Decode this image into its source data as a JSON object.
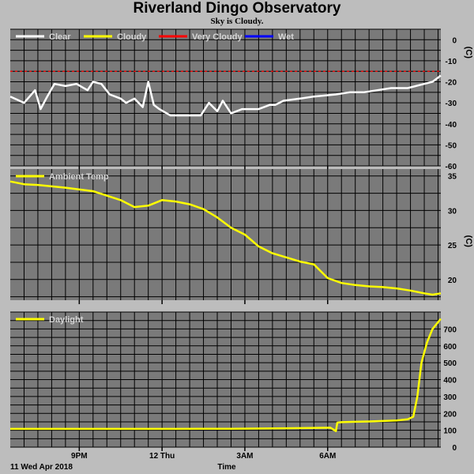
{
  "header": {
    "title": "Riverland Dingo Observatory",
    "subtitle": "Sky is Cloudy."
  },
  "colors": {
    "background": "#bdbdbd",
    "plot_background": "#7a7a7a",
    "grid": "#000000",
    "clear": "#ffffff",
    "cloudy": "#ffff00",
    "very_cloudy": "#ff0000",
    "wet": "#0000ff",
    "threshold_line": "#ff0000"
  },
  "x_axis": {
    "start_label": "11 Wed Apr 2018",
    "label": "Time",
    "ticks": [
      "9PM",
      "12 Thu",
      "3AM",
      "6AM"
    ]
  },
  "chart_data": [
    {
      "type": "line",
      "name": "sky_temperature",
      "ylabel": "(C)",
      "ylim": [
        -60,
        5
      ],
      "yticks": [
        0,
        -10,
        -20,
        -30,
        -40,
        -50,
        -60
      ],
      "grid": true,
      "legend": [
        "Clear",
        "Cloudy",
        "Very Cloudy",
        "Wet"
      ],
      "threshold": {
        "value": -15,
        "style": "dashed",
        "color": "#ff0000"
      },
      "x_hours": [
        0,
        0.5,
        0.9,
        1.1,
        1.3,
        1.6,
        2.0,
        2.4,
        2.8,
        3.0,
        3.3,
        3.6,
        4.0,
        4.2,
        4.5,
        4.8,
        5.0,
        5.2,
        5.4,
        5.8,
        6.3,
        6.9,
        7.2,
        7.5,
        7.7,
        8.0,
        8.4,
        9.0,
        9.4,
        9.6,
        9.9,
        10.5,
        11.0,
        11.8,
        12.3,
        12.8,
        13.3,
        13.8,
        14.4,
        15.0,
        15.3,
        15.6
      ],
      "values": [
        -27,
        -30,
        -24,
        -33,
        -28,
        -21,
        -22,
        -21,
        -24,
        -20,
        -21,
        -26,
        -28,
        -30,
        -28,
        -32,
        -20,
        -31,
        -33,
        -36,
        -36,
        -36,
        -30,
        -34,
        -29,
        -35,
        -33,
        -33,
        -31,
        -31,
        -29,
        -28,
        -27,
        -26,
        -25,
        -25,
        -24,
        -23,
        -23,
        -21,
        -20,
        -17
      ],
      "series": [
        {
          "name": "Clear",
          "color": "#ffffff"
        },
        {
          "name": "Cloudy",
          "color": "#ffff00"
        },
        {
          "name": "Very Cloudy",
          "color": "#ff0000"
        },
        {
          "name": "Wet",
          "color": "#0000ff"
        }
      ]
    },
    {
      "type": "line",
      "name": "ambient_temperature",
      "ylabel": "(C)",
      "ylim": [
        17,
        36
      ],
      "yticks": [
        35,
        30,
        25,
        20
      ],
      "grid": true,
      "legend": [
        "Ambient Temp"
      ],
      "x_hours": [
        0,
        0.5,
        1.0,
        2.0,
        3.0,
        4.0,
        4.5,
        5.0,
        5.5,
        6.0,
        6.5,
        7.0,
        7.5,
        8.0,
        8.5,
        9.0,
        9.5,
        10.0,
        10.5,
        11.0,
        11.5,
        12.0,
        12.5,
        13.0,
        13.5,
        14.0,
        14.5,
        15.0,
        15.3,
        15.6
      ],
      "values": [
        34.2,
        33.8,
        33.7,
        33.3,
        32.8,
        31.5,
        30.5,
        30.7,
        31.5,
        31.3,
        30.9,
        30.2,
        29.0,
        27.5,
        26.5,
        24.8,
        23.8,
        23.2,
        22.6,
        22.2,
        20.2,
        19.5,
        19.2,
        19.0,
        18.9,
        18.7,
        18.4,
        18.0,
        17.8,
        18.0
      ]
    },
    {
      "type": "line",
      "name": "daylight",
      "ylim": [
        0,
        800
      ],
      "yticks": [
        0,
        100,
        200,
        300,
        400,
        500,
        600,
        700
      ],
      "grid": true,
      "legend": [
        "Daylight"
      ],
      "x_hours": [
        0,
        2,
        4,
        6,
        8,
        10,
        11.6,
        11.8,
        11.85,
        12.0,
        12.5,
        13.0,
        13.5,
        14.0,
        14.4,
        14.6,
        14.75,
        14.9,
        15.1,
        15.3,
        15.6
      ],
      "values": [
        108,
        108,
        108,
        108,
        109,
        112,
        115,
        95,
        145,
        148,
        150,
        152,
        155,
        158,
        165,
        180,
        300,
        500,
        620,
        700,
        760
      ]
    }
  ]
}
